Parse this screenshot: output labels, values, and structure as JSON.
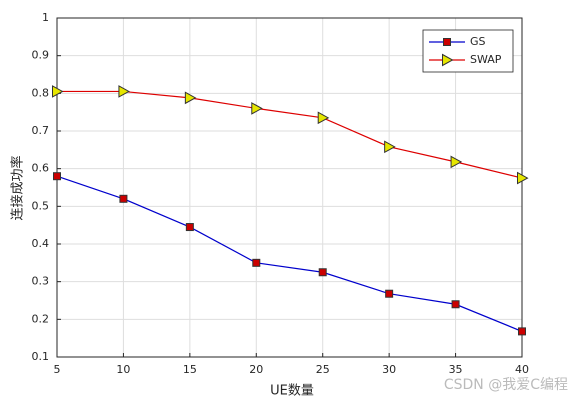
{
  "chart_data": {
    "type": "line",
    "x_label": "UE数量",
    "y_label": "连接成功率",
    "x": [
      5,
      10,
      15,
      20,
      25,
      30,
      35,
      40
    ],
    "series": [
      {
        "name": "GS",
        "color": "#0000cc",
        "marker_color": "#cc0000",
        "marker": "square",
        "values": [
          0.58,
          0.52,
          0.445,
          0.35,
          0.325,
          0.268,
          0.24,
          0.168
        ]
      },
      {
        "name": "SWAP",
        "color": "#dd0000",
        "marker_color": "#e6e600",
        "marker": "triangle-right",
        "values": [
          0.805,
          0.805,
          0.788,
          0.76,
          0.735,
          0.658,
          0.618,
          0.575
        ]
      }
    ],
    "xlim": [
      5,
      40
    ],
    "xticks": [
      5,
      10,
      15,
      20,
      25,
      30,
      35,
      40
    ],
    "ylim": [
      0.1,
      1
    ],
    "yticks": [
      0.1,
      0.2,
      0.3,
      0.4,
      0.5,
      0.6,
      0.7,
      0.8,
      0.9,
      1
    ],
    "grid": true,
    "legend_position": "upper-right",
    "watermark": "CSDN @我爱C编程"
  }
}
